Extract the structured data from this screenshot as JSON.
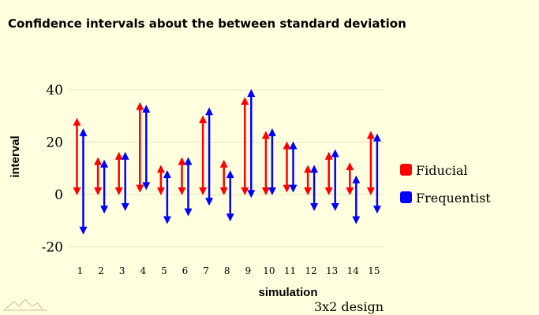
{
  "chart_data": {
    "type": "interval",
    "title": "Confidence intervals about the between standard deviation",
    "xlabel": "simulation",
    "ylabel": "interval",
    "caption": "3x2 design",
    "categories": [
      "1",
      "2",
      "3",
      "4",
      "5",
      "6",
      "7",
      "8",
      "9",
      "10",
      "11",
      "12",
      "13",
      "14",
      "15"
    ],
    "ylim": [
      -24,
      45
    ],
    "yticks": [
      -20,
      0,
      20,
      40
    ],
    "grid": true,
    "legend_position": "right",
    "series": [
      {
        "name": "Fiducial",
        "color": "#ff0000",
        "lower": [
          0,
          0,
          0,
          1,
          0,
          0,
          0,
          0,
          0,
          0,
          1,
          0,
          0,
          0,
          0
        ],
        "upper": [
          29,
          14,
          16,
          35,
          11,
          14,
          30,
          13,
          37,
          24,
          20,
          11,
          16,
          12,
          24
        ]
      },
      {
        "name": "Frequentist",
        "color": "#0000ff",
        "lower": [
          -15,
          -7,
          -6,
          2,
          -11,
          -8,
          -4,
          -10,
          -1,
          0,
          1,
          -6,
          -6,
          -11,
          -7
        ],
        "upper": [
          25,
          13,
          16,
          34,
          9,
          14,
          33,
          9,
          40,
          25,
          20,
          11,
          17,
          7,
          23
        ]
      }
    ]
  }
}
